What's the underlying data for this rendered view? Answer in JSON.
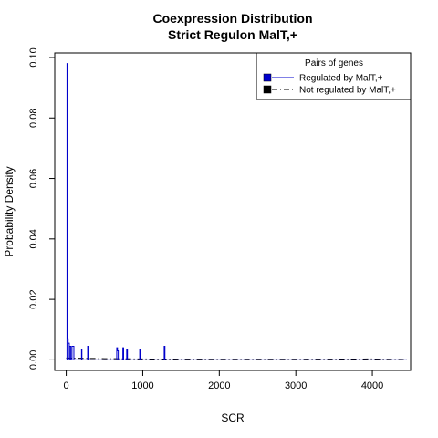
{
  "chart_data": {
    "type": "line",
    "title": "Coexpression Distribution",
    "subtitle": "Strict Regulon MalT,+",
    "xlabel": "SCR",
    "ylabel": "Probability Density",
    "xlim": [
      -150,
      4500
    ],
    "ylim": [
      -0.0035,
      0.1015
    ],
    "x_ticks": [
      0,
      1000,
      2000,
      3000,
      4000
    ],
    "y_ticks": [
      0.0,
      0.02,
      0.04,
      0.06,
      0.08,
      0.1
    ],
    "x_tick_labels": [
      "0",
      "1000",
      "2000",
      "3000",
      "4000"
    ],
    "y_tick_labels": [
      "0.00",
      "0.02",
      "0.04",
      "0.06",
      "0.08",
      "0.10"
    ],
    "grid": false,
    "legend": {
      "title": "Pairs of genes",
      "position": "top-right",
      "entries": [
        {
          "label": "Regulated by  MalT,+",
          "color": "#0000cc",
          "line": "solid"
        },
        {
          "label": "Not regulated by  MalT,+",
          "color": "#000000",
          "line": "dashdot"
        }
      ]
    },
    "series": [
      {
        "name": "Regulated by  MalT,+",
        "color": "#0000cc",
        "style": "solid",
        "x": [
          0,
          10,
          10,
          20,
          20,
          25,
          25,
          40,
          40,
          45,
          45,
          60,
          60,
          75,
          75,
          100,
          100,
          105,
          105,
          200,
          200,
          205,
          205,
          280,
          280,
          285,
          285,
          660,
          660,
          670,
          670,
          680,
          680,
          740,
          740,
          750,
          750,
          790,
          790,
          800,
          800,
          960,
          960,
          970,
          970,
          1280,
          1280,
          1290,
          1290,
          4450
        ],
        "y": [
          0,
          0,
          0.098,
          0.098,
          0.007,
          0.007,
          0.0055,
          0.0055,
          0,
          0,
          0.0045,
          0.0045,
          0,
          0,
          0.0045,
          0.0045,
          0,
          0,
          0,
          0,
          0.0035,
          0.0035,
          0,
          0,
          0.0045,
          0.0045,
          0,
          0,
          0.004,
          0.004,
          0.003,
          0.003,
          0,
          0,
          0.004,
          0.004,
          0,
          0,
          0.0035,
          0.0035,
          0,
          0,
          0.0035,
          0.0035,
          0,
          0,
          0.0045,
          0.0045,
          0,
          0
        ]
      },
      {
        "name": "Not regulated by  MalT,+",
        "color": "#000000",
        "style": "dashdot",
        "x": [
          0,
          500,
          1000,
          2000,
          3000,
          4000,
          4200,
          4450
        ],
        "y": [
          0.0006,
          0.0004,
          0.0003,
          0.0002,
          0.0002,
          0.0003,
          0.0002,
          0.0001
        ]
      }
    ]
  }
}
